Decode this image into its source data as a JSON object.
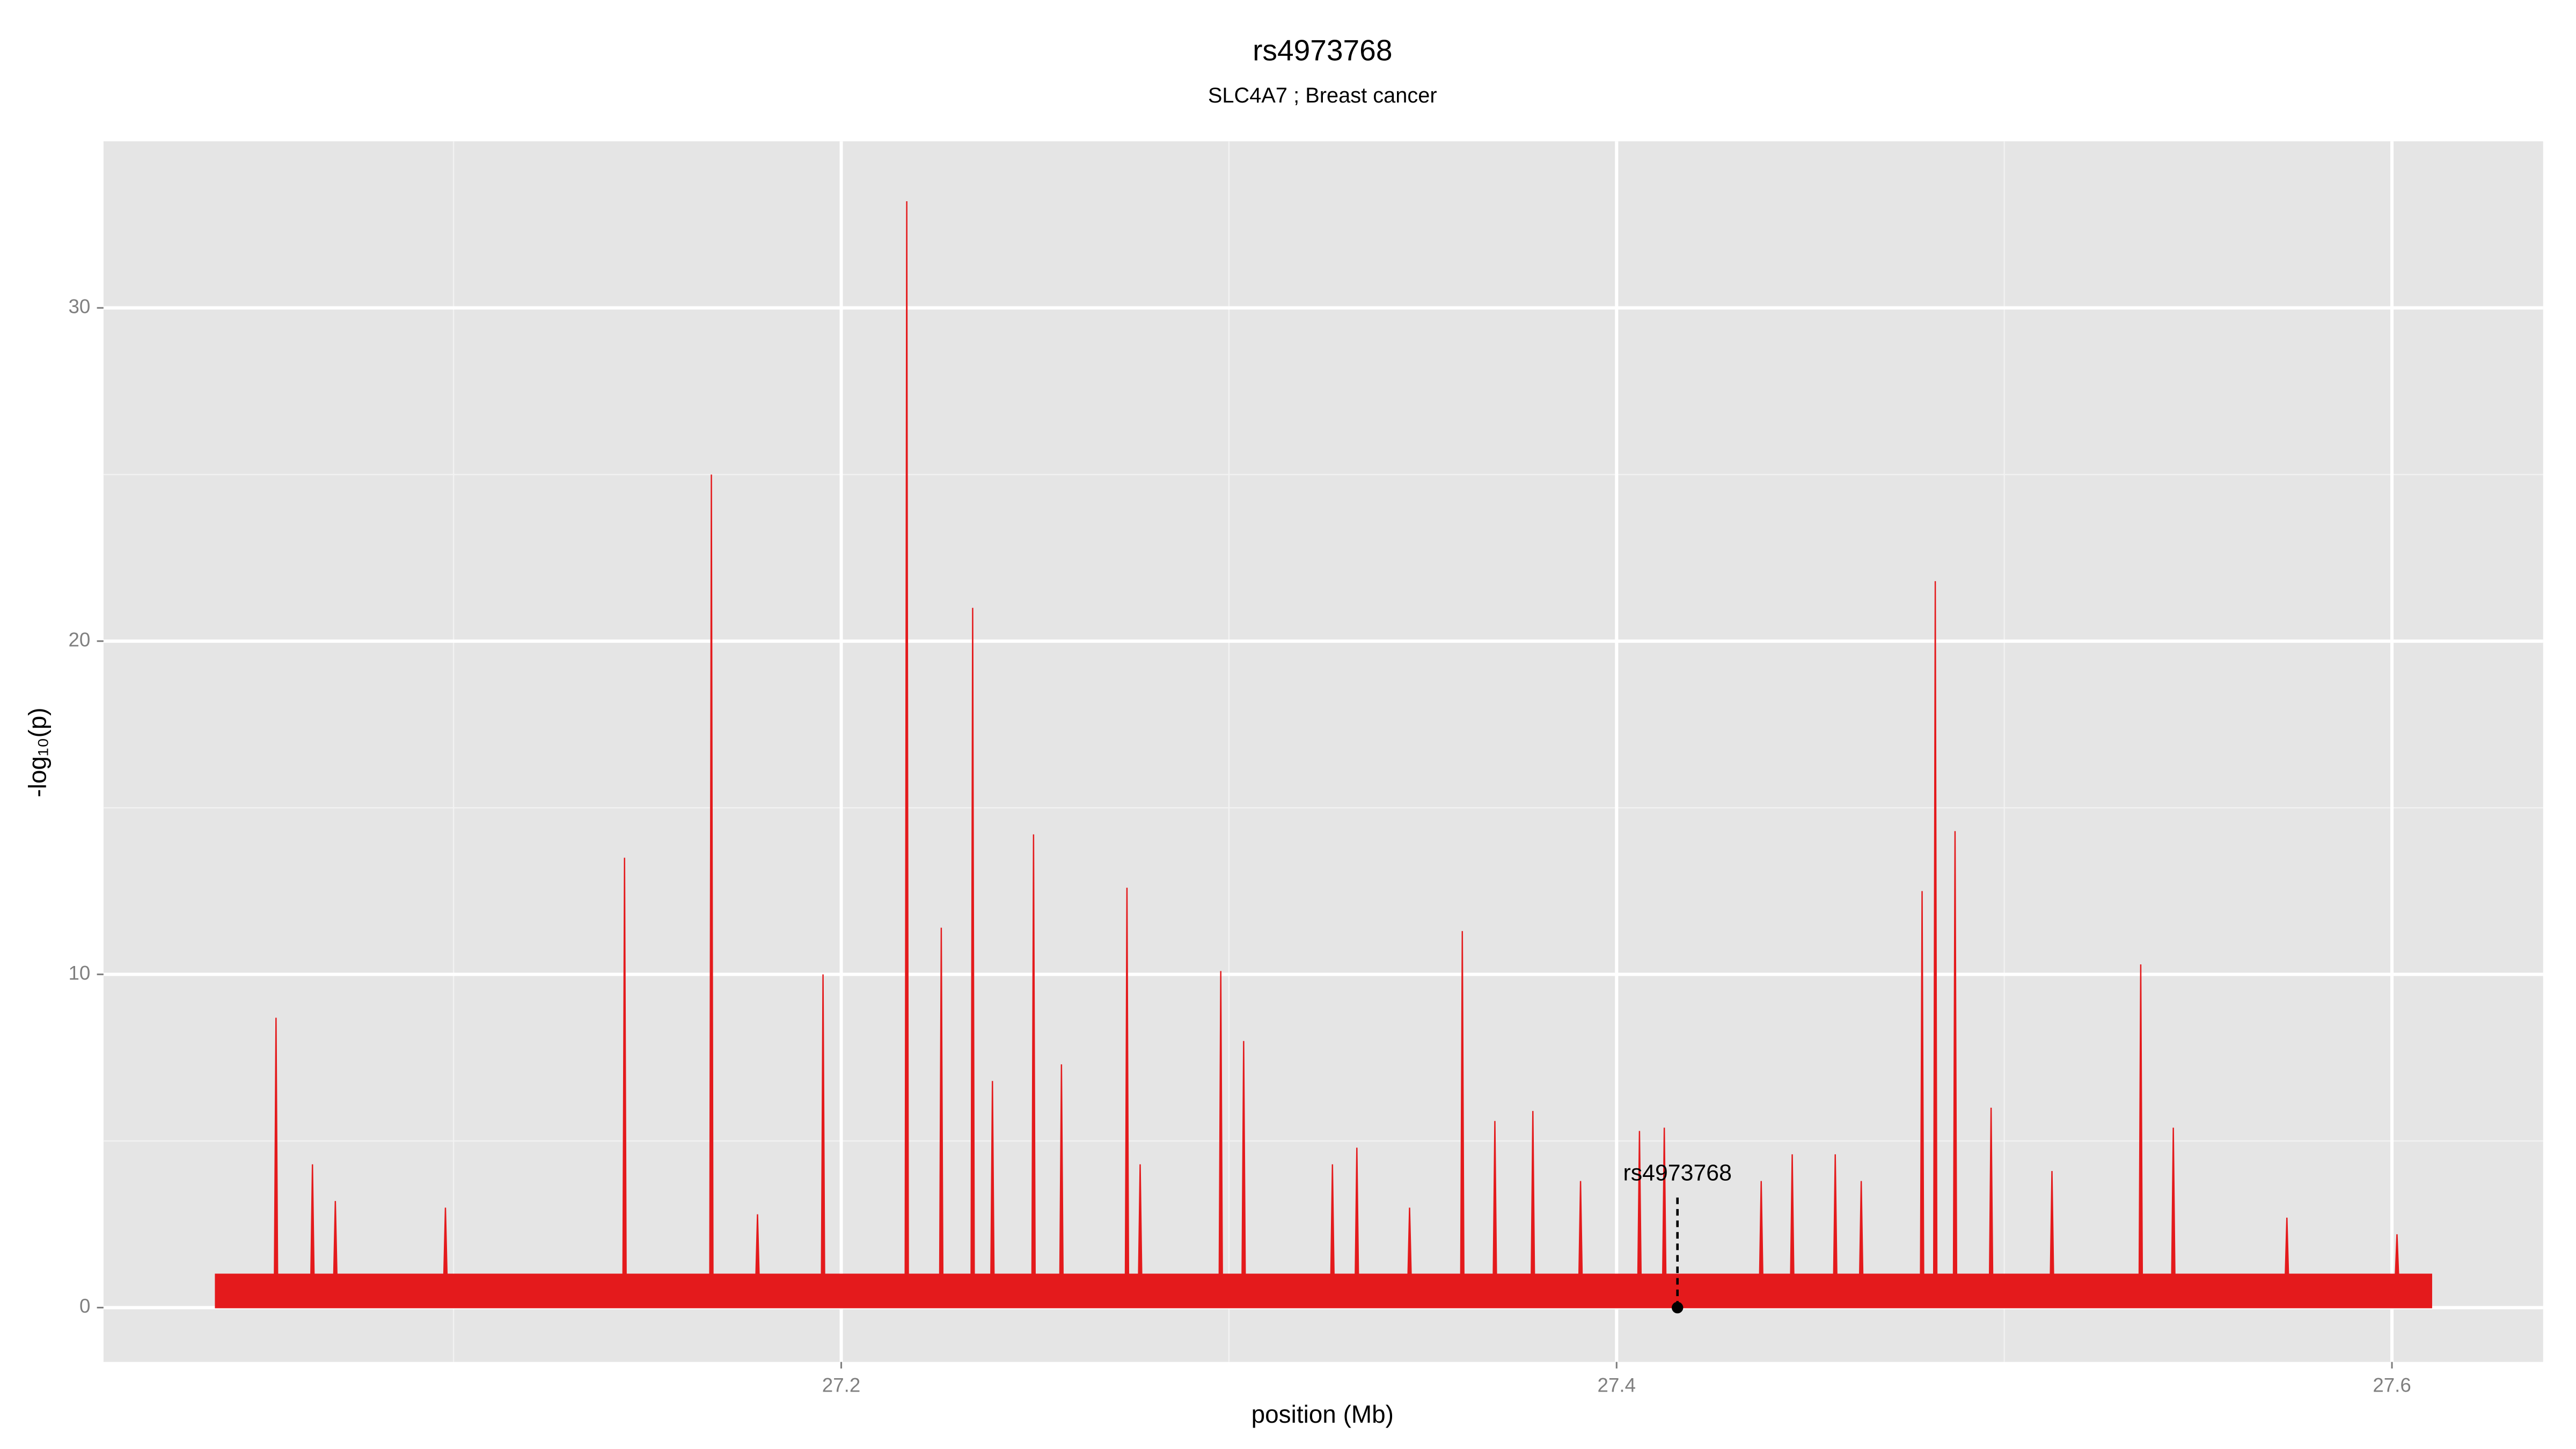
{
  "chart_data": {
    "type": "area",
    "title": "rs4973768",
    "subtitle": "SLC4A7 ; Breast cancer",
    "xlabel": "position (Mb)",
    "ylabel": "-log₁₀(p)",
    "xlim": [
      27.0097,
      27.639
    ],
    "ylim": [
      -1.63,
      35
    ],
    "xticks": [
      27.2,
      27.4,
      27.6
    ],
    "yticks": [
      0,
      10,
      20,
      30
    ],
    "xminor": [
      27.1,
      27.3,
      27.5
    ],
    "yminor": [
      5,
      15,
      25
    ],
    "grid": true,
    "x": [
      27.0386,
      27.0538,
      27.0542,
      27.0546,
      27.0632,
      27.0636,
      27.064,
      27.0691,
      27.0695,
      27.0699,
      27.0975,
      27.0979,
      27.0983,
      27.1437,
      27.1441,
      27.1445,
      27.1661,
      27.1665,
      27.1669,
      27.178,
      27.1784,
      27.1788,
      27.1949,
      27.1953,
      27.1957,
      27.2165,
      27.2169,
      27.2173,
      27.2254,
      27.2258,
      27.2262,
      27.2335,
      27.2339,
      27.2343,
      27.2386,
      27.239,
      27.2394,
      27.2492,
      27.2496,
      27.25,
      27.2564,
      27.2568,
      27.2572,
      27.2733,
      27.2737,
      27.2741,
      27.2767,
      27.2771,
      27.2775,
      27.2975,
      27.2979,
      27.2983,
      27.3034,
      27.3038,
      27.3042,
      27.3263,
      27.3267,
      27.3271,
      27.3326,
      27.333,
      27.3334,
      27.3462,
      27.3466,
      27.347,
      27.3598,
      27.3602,
      27.3606,
      27.3682,
      27.3686,
      27.369,
      27.378,
      27.3784,
      27.3788,
      27.3903,
      27.3907,
      27.3911,
      27.4055,
      27.4059,
      27.4063,
      27.4119,
      27.4123,
      27.4127,
      27.4369,
      27.4373,
      27.4377,
      27.4449,
      27.4453,
      27.4457,
      27.456,
      27.4564,
      27.4568,
      27.4627,
      27.4631,
      27.4635,
      27.4784,
      27.4788,
      27.4792,
      27.4818,
      27.4822,
      27.4826,
      27.4869,
      27.4873,
      27.4877,
      27.4962,
      27.4966,
      27.497,
      27.5119,
      27.5123,
      27.5127,
      27.5348,
      27.5352,
      27.5356,
      27.5432,
      27.5436,
      27.544,
      27.5725,
      27.5729,
      27.5733,
      27.6009,
      27.6013,
      27.6017,
      27.6102
    ],
    "series": [
      {
        "color": "#e41a1c",
        "values": [
          1,
          1,
          8.7,
          1,
          1,
          4.3,
          1,
          1,
          3.2,
          1,
          1,
          3,
          1,
          1,
          13.5,
          1,
          1,
          25,
          1,
          1,
          2.8,
          1,
          1,
          10,
          1,
          1,
          33.2,
          1,
          1,
          11.4,
          1,
          1,
          21,
          1,
          1,
          6.8,
          1,
          1,
          14.2,
          1,
          1,
          7.3,
          1,
          1,
          12.6,
          1,
          1,
          4.3,
          1,
          1,
          10.1,
          1,
          1,
          8,
          1,
          1,
          4.3,
          1,
          1,
          4.8,
          1,
          1,
          3,
          1,
          1,
          11.3,
          1,
          1,
          5.6,
          1,
          1,
          5.9,
          1,
          1,
          3.8,
          1,
          1,
          5.3,
          1,
          1,
          5.4,
          1,
          1,
          3.8,
          1,
          1,
          4.6,
          1,
          1,
          4.6,
          1,
          1,
          3.8,
          1,
          1,
          12.5,
          1,
          1,
          21.8,
          1,
          1,
          14.3,
          1,
          1,
          6,
          1,
          1,
          4.1,
          1,
          1,
          10.3,
          1,
          1,
          5.4,
          1,
          1,
          2.7,
          1,
          1,
          2.2,
          1,
          1
        ]
      }
    ],
    "annotation": {
      "text": "rs4973768",
      "x": 27.4157,
      "y": 0
    }
  }
}
